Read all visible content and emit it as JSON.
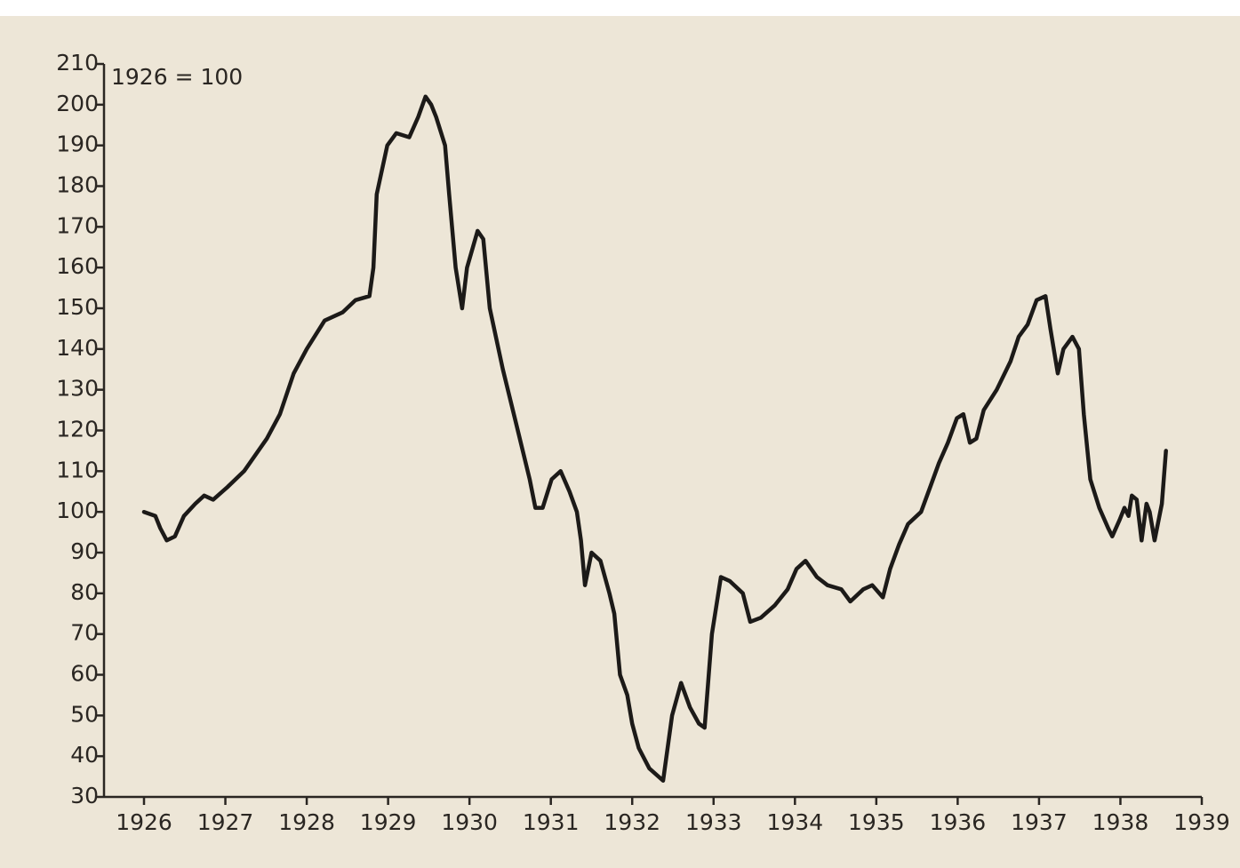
{
  "chart_data": {
    "type": "line",
    "annotation": "1926 = 100",
    "color": "#1c1a18",
    "x": [
      1926.0,
      1926.14,
      1926.2,
      1926.28,
      1926.38,
      1926.49,
      1926.63,
      1926.74,
      1926.85,
      1927.02,
      1927.23,
      1927.51,
      1927.67,
      1927.84,
      1928.0,
      1928.22,
      1928.44,
      1928.6,
      1928.77,
      1928.82,
      1928.86,
      1928.99,
      1929.1,
      1929.26,
      1929.37,
      1929.46,
      1929.53,
      1929.59,
      1929.7,
      1929.75,
      1929.83,
      1929.91,
      1929.97,
      1930.1,
      1930.17,
      1930.25,
      1930.41,
      1930.57,
      1930.74,
      1930.81,
      1930.9,
      1931.01,
      1931.12,
      1931.23,
      1931.32,
      1931.37,
      1931.42,
      1931.5,
      1931.61,
      1931.72,
      1931.78,
      1931.85,
      1931.94,
      1932.0,
      1932.08,
      1932.21,
      1932.38,
      1932.49,
      1932.6,
      1932.71,
      1932.82,
      1932.89,
      1932.98,
      1933.09,
      1933.2,
      1933.36,
      1933.45,
      1933.58,
      1933.75,
      1933.91,
      1934.02,
      1934.13,
      1934.27,
      1934.4,
      1934.57,
      1934.68,
      1934.84,
      1934.95,
      1935.08,
      1935.17,
      1935.28,
      1935.39,
      1935.55,
      1935.66,
      1935.77,
      1935.88,
      1935.99,
      1936.07,
      1936.15,
      1936.23,
      1936.32,
      1936.48,
      1936.65,
      1936.75,
      1936.86,
      1936.97,
      1937.08,
      1937.14,
      1937.23,
      1937.3,
      1937.41,
      1937.49,
      1937.55,
      1937.63,
      1937.74,
      1937.85,
      1937.9,
      1937.99,
      1938.05,
      1938.1,
      1938.14,
      1938.2,
      1938.26,
      1938.32,
      1938.36,
      1938.42,
      1938.51,
      1938.56
    ],
    "values": [
      100,
      99,
      96,
      93,
      94,
      99,
      102,
      104,
      103,
      106,
      110,
      118,
      124,
      134,
      140,
      147,
      149,
      152,
      153,
      160,
      178,
      190,
      193,
      192,
      197,
      202,
      200,
      197,
      190,
      178,
      160,
      150,
      160,
      169,
      167,
      150,
      135,
      122,
      108,
      101,
      101,
      108,
      110,
      105,
      100,
      93,
      82,
      90,
      88,
      80,
      75,
      60,
      55,
      48,
      42,
      37,
      34,
      50,
      58,
      52,
      48,
      47,
      70,
      84,
      83,
      80,
      73,
      74,
      77,
      81,
      86,
      88,
      84,
      82,
      81,
      78,
      81,
      82,
      79,
      86,
      92,
      97,
      100,
      106,
      112,
      117,
      123,
      124,
      117,
      118,
      125,
      130,
      137,
      143,
      146,
      152,
      153,
      145,
      134,
      140,
      143,
      140,
      124,
      108,
      101,
      96,
      94,
      98,
      101,
      99,
      104,
      103,
      93,
      102,
      100,
      93,
      102,
      115
    ],
    "xlim": [
      1926,
      1939
    ],
    "xticks": [
      1926,
      1927,
      1928,
      1929,
      1930,
      1931,
      1932,
      1933,
      1934,
      1935,
      1936,
      1937,
      1938,
      1939
    ],
    "ylim": [
      30,
      210
    ],
    "yticks": [
      30,
      40,
      50,
      60,
      70,
      80,
      90,
      100,
      110,
      120,
      130,
      140,
      150,
      160,
      170,
      180,
      190,
      200,
      210
    ]
  }
}
